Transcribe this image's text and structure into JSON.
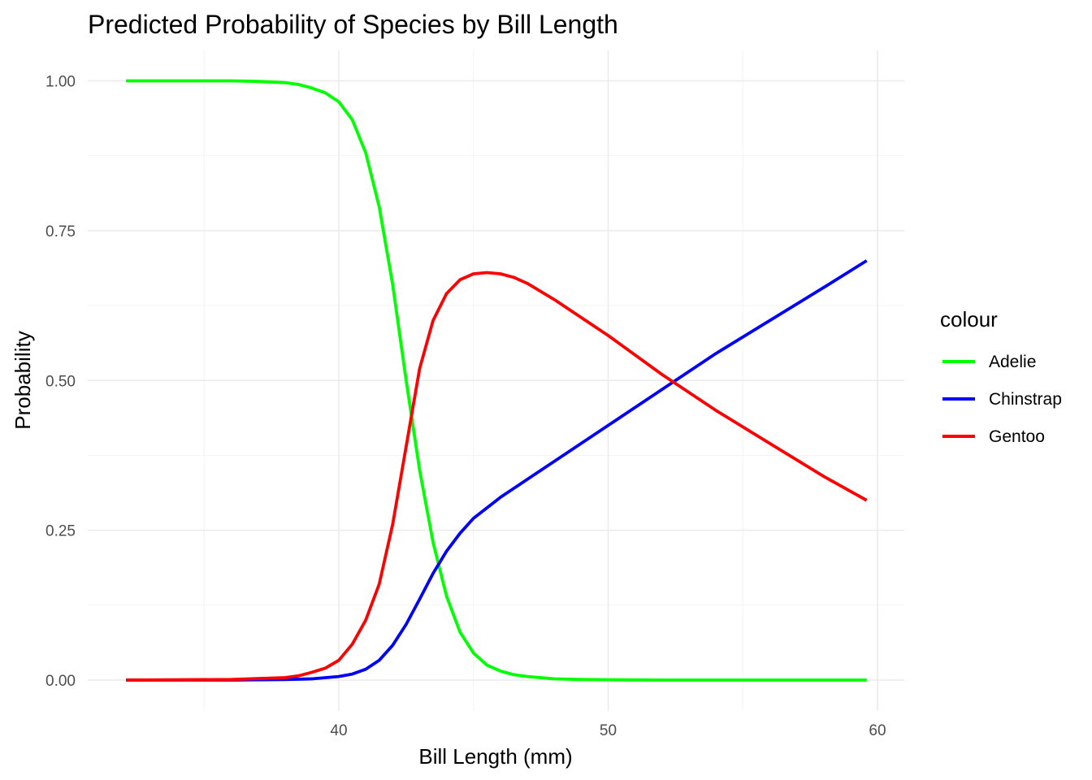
{
  "chart_data": {
    "type": "line",
    "title": "Predicted Probability of Species by Bill Length",
    "xlabel": "Bill Length (mm)",
    "ylabel": "Probability",
    "xlim": [
      32.1,
      59.6
    ],
    "ylim": [
      0,
      1
    ],
    "x_ticks": [
      40,
      50,
      60
    ],
    "y_ticks": [
      0,
      0.25,
      0.5,
      0.75,
      1
    ],
    "x_tick_labels": [
      "40",
      "50",
      "60"
    ],
    "y_tick_labels": [
      "0.00",
      "0.25",
      "0.50",
      "0.75",
      "1.00"
    ],
    "grid": true,
    "legend": {
      "title": "colour",
      "position": "right"
    },
    "series": [
      {
        "name": "Adelie",
        "color": "#00ff00",
        "x": [
          32.1,
          34,
          36,
          37,
          38,
          38.5,
          39,
          39.5,
          40,
          40.5,
          41,
          41.5,
          42,
          42.5,
          43,
          43.5,
          44,
          44.5,
          45,
          45.5,
          46,
          46.5,
          47,
          48,
          49,
          50,
          52,
          55,
          59.6
        ],
        "y": [
          1.0,
          1.0,
          1.0,
          0.999,
          0.997,
          0.994,
          0.988,
          0.98,
          0.965,
          0.935,
          0.88,
          0.79,
          0.66,
          0.5,
          0.35,
          0.23,
          0.14,
          0.08,
          0.045,
          0.025,
          0.015,
          0.009,
          0.006,
          0.002,
          0.001,
          0.0005,
          0.0,
          0.0,
          0.0
        ]
      },
      {
        "name": "Chinstrap",
        "color": "#0000ff",
        "x": [
          32.1,
          36,
          38,
          39,
          40,
          40.5,
          41,
          41.5,
          42,
          42.5,
          43,
          43.5,
          44,
          44.5,
          45,
          46,
          47,
          48,
          50,
          52,
          54,
          56,
          58,
          59.6
        ],
        "y": [
          0.0,
          0.0,
          0.001,
          0.002,
          0.006,
          0.01,
          0.018,
          0.033,
          0.058,
          0.093,
          0.135,
          0.178,
          0.215,
          0.245,
          0.27,
          0.305,
          0.335,
          0.365,
          0.425,
          0.485,
          0.545,
          0.6,
          0.655,
          0.7
        ]
      },
      {
        "name": "Gentoo",
        "color": "#ff0000",
        "x": [
          32.1,
          36,
          38,
          38.5,
          39,
          39.5,
          40,
          40.5,
          41,
          41.5,
          42,
          42.5,
          43,
          43.5,
          44,
          44.5,
          45,
          45.5,
          46,
          46.5,
          47,
          48,
          50,
          52,
          54,
          56,
          58,
          59.6
        ],
        "y": [
          0.0,
          0.001,
          0.004,
          0.007,
          0.013,
          0.02,
          0.033,
          0.06,
          0.1,
          0.16,
          0.26,
          0.39,
          0.52,
          0.6,
          0.645,
          0.668,
          0.678,
          0.68,
          0.678,
          0.672,
          0.662,
          0.635,
          0.575,
          0.51,
          0.45,
          0.395,
          0.34,
          0.3
        ]
      }
    ]
  }
}
